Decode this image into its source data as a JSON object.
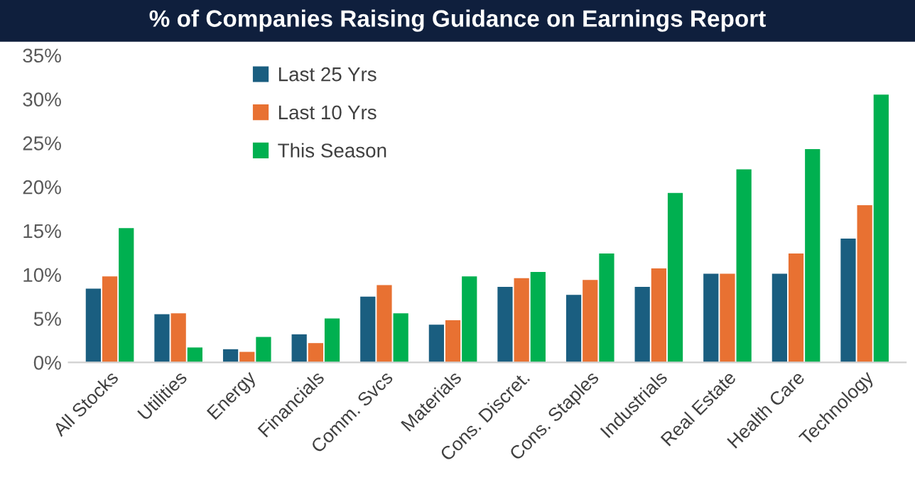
{
  "chart_data": {
    "type": "bar",
    "title": "% of Companies Raising Guidance on Earnings Report",
    "categories": [
      "All Stocks",
      "Utilities",
      "Energy",
      "Financials",
      "Comm. Svcs",
      "Materials",
      "Cons. Discret.",
      "Cons. Staples",
      "Industrials",
      "Real Estate",
      "Health Care",
      "Technology"
    ],
    "series": [
      {
        "name": "Last 25 Yrs",
        "color": "#1a5e80",
        "values": [
          8.4,
          5.5,
          1.5,
          3.2,
          7.5,
          4.3,
          8.6,
          7.7,
          8.6,
          10.1,
          10.1,
          14.1
        ]
      },
      {
        "name": "Last 10 Yrs",
        "color": "#e87132",
        "values": [
          9.8,
          5.6,
          1.2,
          2.2,
          8.8,
          4.8,
          9.6,
          9.4,
          10.7,
          10.1,
          12.4,
          17.9
        ]
      },
      {
        "name": "This Season",
        "color": "#00b050",
        "values": [
          15.3,
          1.7,
          2.9,
          5.0,
          5.6,
          9.8,
          10.3,
          12.4,
          19.3,
          22.0,
          24.3,
          30.5
        ]
      }
    ],
    "ylim": [
      0,
      35
    ],
    "yticks": [
      {
        "value": 0,
        "label": "0%"
      },
      {
        "value": 5,
        "label": "5%"
      },
      {
        "value": 10,
        "label": "10%"
      },
      {
        "value": 15,
        "label": "15%"
      },
      {
        "value": 20,
        "label": "20%"
      },
      {
        "value": 25,
        "label": "25%"
      },
      {
        "value": 30,
        "label": "30%"
      },
      {
        "value": 35,
        "label": "35%"
      }
    ],
    "grid": false,
    "legend": "top left"
  }
}
